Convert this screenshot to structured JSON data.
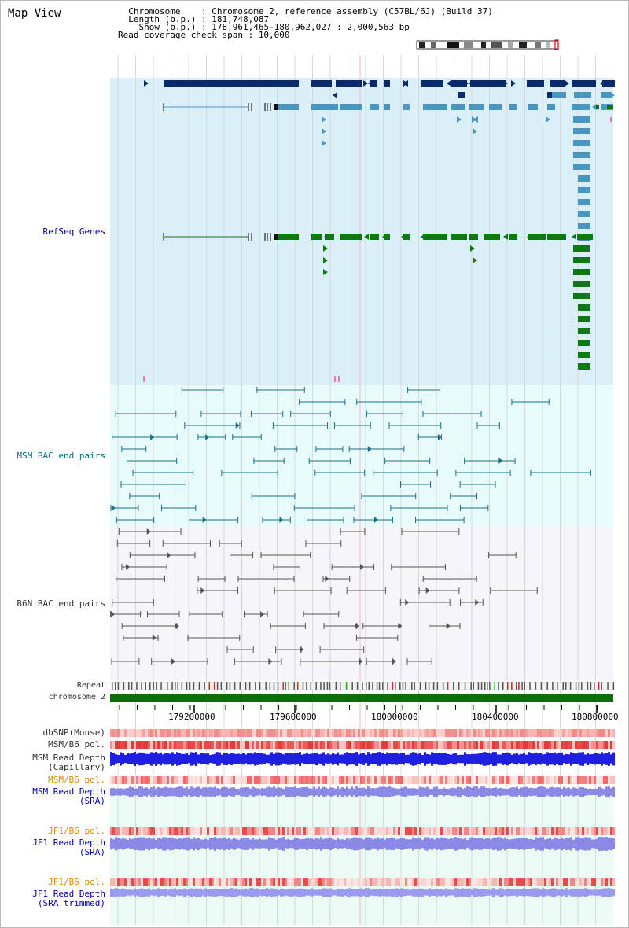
{
  "title": "Map View",
  "info": {
    "chromosome_label": "Chromosome    : ",
    "chromosome_value": "Chromosome 2, reference assembly (C57BL/6J) (Build 37)",
    "length_label": "Length (b.p.) : ",
    "length_value": "181,748,087",
    "show_label": "Show (b.p.) : ",
    "show_value": "178,961,465-180,962,027 : 2,000,563 bp",
    "span_label": "Read coverage check span : ",
    "span_value": "10,000"
  },
  "tracks": {
    "refseq": "RefSeq Genes",
    "msm_bac": "MSM BAC end pairs",
    "b6n_bac": "B6N BAC end pairs",
    "repeat": "Repeat",
    "chromosome": "chromosome 2",
    "dbsnp": "dbSNP(Mouse)",
    "msm_b6_pol_1": "MSM/B6 pol.",
    "msm_depth_cap_1": "MSM Read Depth",
    "msm_depth_cap_2": "(Capillary)",
    "msm_b6_pol_2": "MSM/B6 pol.",
    "msm_depth_sra_1": "MSM Read Depth",
    "msm_depth_sra_2": "(SRA)",
    "jf1_b6_pol_1": "JF1/B6 pol.",
    "jf1_depth_sra_1": "JF1 Read Depth",
    "jf1_depth_sra_2": "(SRA)",
    "jf1_b6_pol_2": "JF1/B6 pol.",
    "jf1_depth_trim_1": "JF1 Read Depth",
    "jf1_depth_trim_2": "(SRA trimmed)"
  },
  "axis_ticks": [
    "179200000",
    "179600000",
    "180000000",
    "180400000",
    "180800000"
  ],
  "colors": {
    "refseq_bg": "#dbeff9",
    "msm_bg": "#e7fbfb",
    "b6n_bg": "#f5f5fa",
    "gene_navy": "#0b2a6e",
    "gene_light": "#4a96c2",
    "gene_green": "#0b7a14",
    "chromosome_bar": "#0b6e0b"
  }
}
